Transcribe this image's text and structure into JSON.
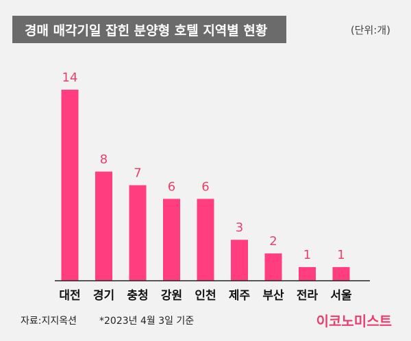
{
  "header": {
    "title": "경매 매각기일 잡힌 분양형 호텔 지역별 현황",
    "unit": "(단위:개)"
  },
  "footer": {
    "source": "자료:지지옥션",
    "note": "*2023년 4월 3일 기준",
    "logo": "이코노미스트"
  },
  "colors": {
    "bar": "#ff3d7f",
    "value_label": "#e8406e",
    "title_bg": "#6b6b6b",
    "background": "#f2f2f2"
  },
  "chart_data": {
    "type": "bar",
    "title": "경매 매각기일 잡힌 분양형 호텔 지역별 현황",
    "unit": "(단위:개)",
    "categories": [
      "대전",
      "경기",
      "충청",
      "강원",
      "인천",
      "제주",
      "부산",
      "전라",
      "서울"
    ],
    "values": [
      14,
      8,
      7,
      6,
      6,
      3,
      2,
      1,
      1
    ],
    "ylim": [
      0,
      14
    ],
    "grid": false,
    "data_labels": true
  }
}
